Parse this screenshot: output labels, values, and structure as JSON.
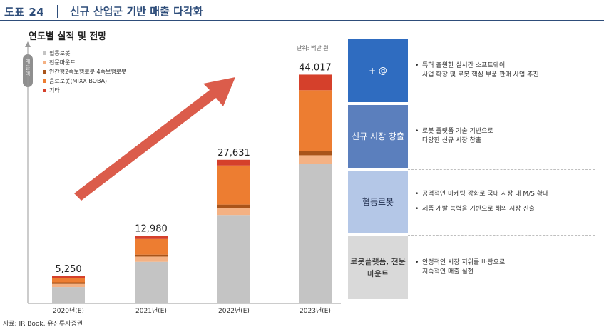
{
  "header": {
    "figure_no": "도표 24",
    "title": "신규 산업군 기반 매출 다각화"
  },
  "chart_data": {
    "type": "bar",
    "stacked": true,
    "title": "연도별 실적 및 전망",
    "unit_badge": "매출액",
    "unit_label": "단위: 백만 원",
    "categories": [
      "2020년(E)",
      "2021년(E)",
      "2022년(E)",
      "2023년(E)"
    ],
    "totals": [
      5250,
      12980,
      27631,
      44017
    ],
    "total_labels": [
      "5,250",
      "12,980",
      "27,631",
      "44,017"
    ],
    "ylim": [
      0,
      46000
    ],
    "legend_position": "top-left",
    "series": [
      {
        "name": "협동로봇",
        "color": "#c4c4c4",
        "values": [
          3150,
          8000,
          17000,
          26800
        ]
      },
      {
        "name": "천문마운트",
        "color": "#f4b183",
        "values": [
          600,
          1000,
          1300,
          1700
        ]
      },
      {
        "name": "인간형2족보행로봇 4족보행로봇",
        "color": "#a9541a",
        "values": [
          300,
          380,
          700,
          800
        ]
      },
      {
        "name": "음료로봇(MIXX BOBA)",
        "color": "#ed7d31",
        "values": [
          800,
          3000,
          7531,
          11717
        ]
      },
      {
        "name": "기타",
        "color": "#d5402b",
        "values": [
          400,
          600,
          1100,
          3000
        ]
      }
    ]
  },
  "cards": [
    {
      "label": "+ @",
      "bg": "#2f6cc0",
      "fg": "#ffffff",
      "bullets": [
        "특허 출원한 실시간 소프트웨어",
        "사업 확장 및 로봇 핵심 부품 판매 사업 추진"
      ],
      "bullet_style": [
        "bullet",
        "indent"
      ]
    },
    {
      "label": "신규 시장 창출",
      "bg": "#5b7fbd",
      "fg": "#ffffff",
      "bullets": [
        "로봇 플랫폼 기술 기반으로",
        "다양한 신규 시장 창출"
      ],
      "bullet_style": [
        "bullet",
        "indent"
      ]
    },
    {
      "label": "협동로봇",
      "bg": "#b4c7e7",
      "fg": "#1f2d4d",
      "bullets": [
        "공격적인 마케팅 강화로 국내 시장 내 M/S 확대",
        "제품 개발 능력을 기반으로 해외 시장 진출"
      ],
      "bullet_style": [
        "bullet",
        "bullet"
      ]
    },
    {
      "label": "로봇플랫폼, 천문마운트",
      "bg": "#d9d9d9",
      "fg": "#222222",
      "bullets": [
        "안정적인 시장 지위를 바탕으로",
        "지속적인 매출 실현"
      ],
      "bullet_style": [
        "bullet",
        "indent"
      ]
    }
  ],
  "source": "자료: IR Book, 유진투자증권",
  "colors": {
    "header": "#2e4d7a",
    "arrow": "#d5402b"
  }
}
